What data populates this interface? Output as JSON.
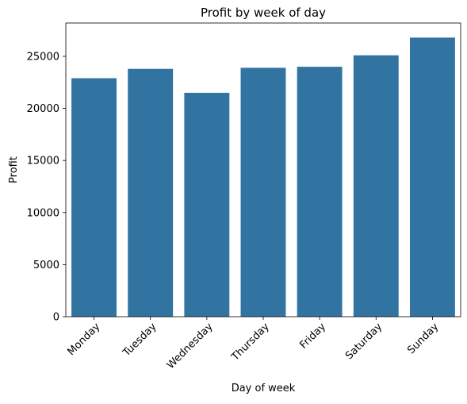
{
  "chart_data": {
    "type": "bar",
    "title": "Profit by week of day",
    "xlabel": "Day of week",
    "ylabel": "Profit",
    "categories": [
      "Monday",
      "Tuesday",
      "Wednesday",
      "Thursday",
      "Friday",
      "Saturday",
      "Sunday"
    ],
    "values": [
      22900,
      23800,
      21500,
      23900,
      24000,
      25100,
      26800
    ],
    "ylim": [
      0,
      28200
    ],
    "yticks": [
      0,
      5000,
      10000,
      15000,
      20000,
      25000
    ],
    "grid": false,
    "bar_color": "#3274a1"
  }
}
